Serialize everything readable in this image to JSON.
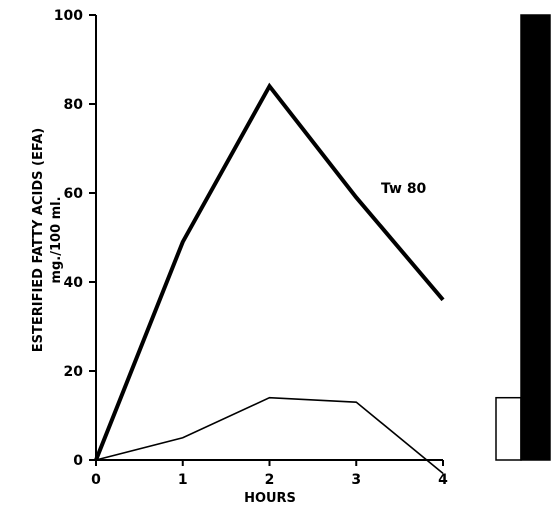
{
  "chart_data": {
    "type": "line",
    "title": "",
    "xlabel": "HOURS",
    "ylabel_line1": "ESTERIFIED FATTY ACIDS (EFA)",
    "ylabel_line2": "mg./100 ml.",
    "x": [
      0,
      1,
      2,
      3,
      4
    ],
    "xlim": [
      0,
      4
    ],
    "ylim": [
      0,
      100
    ],
    "x_ticks": [
      "0",
      "1",
      "2",
      "3",
      "4"
    ],
    "y_ticks": [
      "0",
      "20",
      "40",
      "60",
      "80",
      "100"
    ],
    "y_tick_values": [
      0,
      20,
      40,
      60,
      80,
      100
    ],
    "grid": false,
    "series": [
      {
        "name": "Tw 80",
        "values": [
          0,
          49,
          84,
          59,
          36
        ],
        "style": "thick"
      },
      {
        "values": [
          0,
          5,
          14,
          13,
          -3
        ],
        "style": "thin"
      }
    ],
    "side_bars": [
      {
        "fill": "#ffffff",
        "value": 14
      },
      {
        "fill": "#000000",
        "value": 100
      }
    ]
  }
}
